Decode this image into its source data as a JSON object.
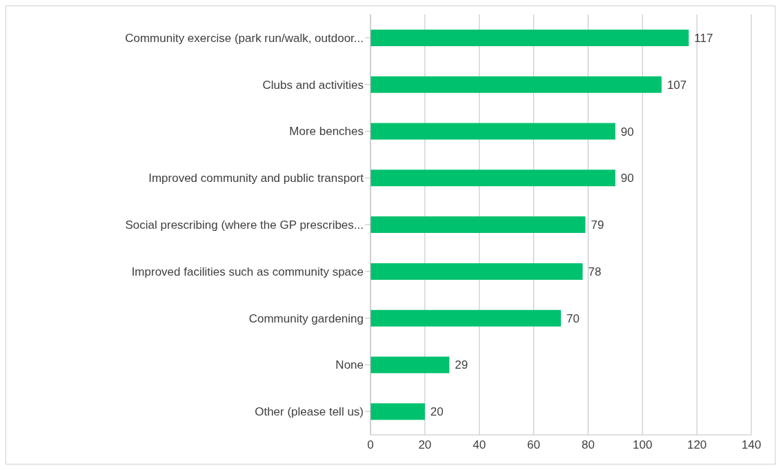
{
  "chart_data": {
    "type": "bar",
    "orientation": "horizontal",
    "categories": [
      "Community exercise (park run/walk, outdoor...",
      "Clubs and activities",
      "More benches",
      "Improved community and public transport",
      "Social prescribing (where the GP prescribes...",
      "Improved facilities such as community space",
      "Community gardening",
      "None",
      "Other (please tell us)"
    ],
    "values": [
      117,
      107,
      90,
      90,
      79,
      78,
      70,
      29,
      20
    ],
    "color": "#00c16e",
    "xlim": [
      0,
      140
    ],
    "xticks": [
      0,
      20,
      40,
      60,
      80,
      100,
      120,
      140
    ],
    "grid": "x",
    "data_labels": true,
    "legend": false
  }
}
